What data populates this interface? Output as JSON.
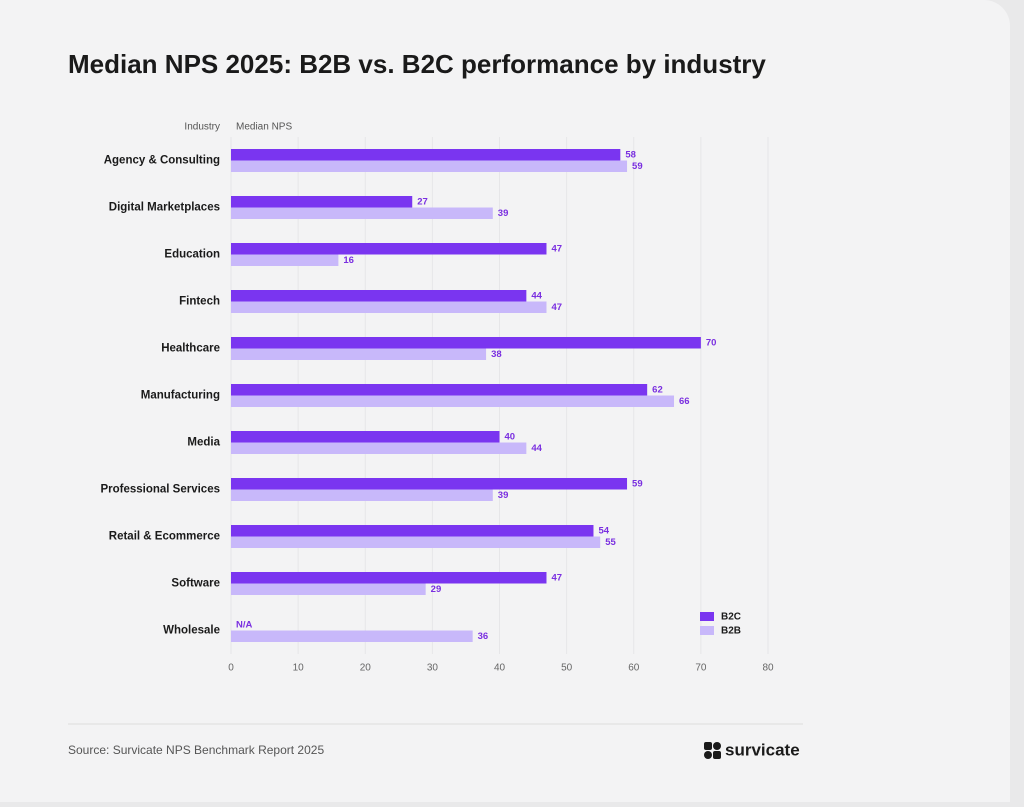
{
  "chart_data": {
    "type": "hbar",
    "title": "Median NPS 2025: B2B vs. B2C performance by industry",
    "y_label": "Industry",
    "x_label": "Median NPS",
    "categories": [
      "Agency & Consulting",
      "Digital Marketplaces",
      "Education",
      "Fintech",
      "Healthcare",
      "Manufacturing",
      "Media",
      "Professional Services",
      "Retail & Ecommerce",
      "Software",
      "Wholesale"
    ],
    "series": [
      {
        "name": "B2C",
        "color": "#7a35f0",
        "values": [
          58,
          27,
          47,
          44,
          70,
          62,
          40,
          59,
          54,
          47,
          null
        ],
        "value_labels": [
          null,
          null,
          null,
          null,
          null,
          null,
          null,
          null,
          null,
          null,
          "N/A"
        ]
      },
      {
        "name": "B2B",
        "color": "#c8b8fa",
        "values": [
          59,
          39,
          16,
          47,
          38,
          66,
          44,
          39,
          55,
          29,
          36
        ]
      }
    ],
    "xlim": [
      0,
      80
    ],
    "xticks": [
      0,
      10,
      20,
      30,
      40,
      50,
      60,
      70,
      80
    ],
    "grid": true,
    "legend": "bottom-right",
    "label_color": "#7a2fe0",
    "source": "Source: Survicate NPS Benchmark Report 2025",
    "brand": "survicate"
  }
}
